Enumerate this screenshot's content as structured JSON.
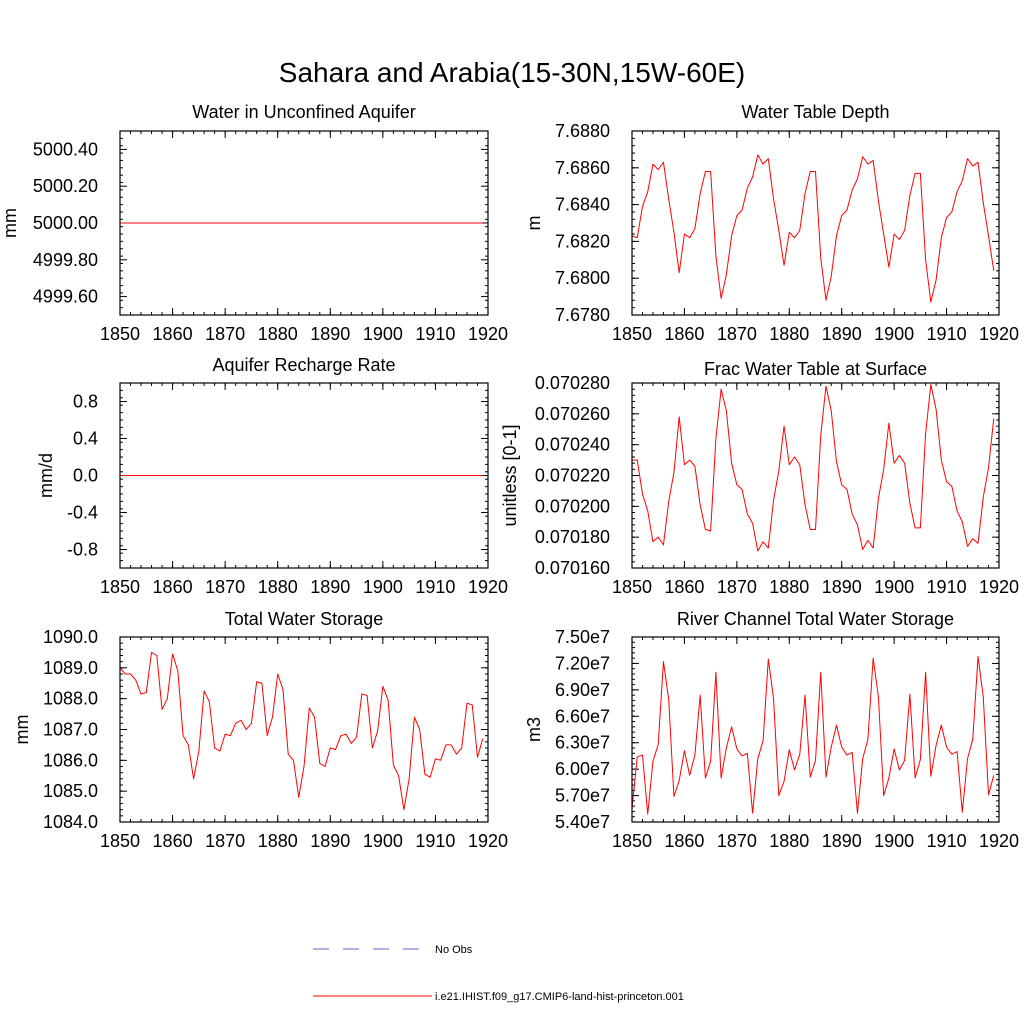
{
  "figure": {
    "title": "Sahara and Arabia(15-30N,15W-60E)"
  },
  "chart_data": [
    {
      "type": "line",
      "title": "Water in Unconfined Aquifer",
      "ylabel": "mm",
      "xlim": [
        1850,
        1920
      ],
      "ylim": [
        4999.5,
        5000.5
      ],
      "xticks": [
        1850,
        1860,
        1870,
        1880,
        1890,
        1900,
        1910,
        1920
      ],
      "xtick_labels": [
        "1850",
        "1860",
        "1870",
        "1880",
        "1890",
        "1900",
        "1910",
        "1920"
      ],
      "yticks": [
        4999.6,
        4999.8,
        5000.0,
        5000.2,
        5000.4
      ],
      "ytick_labels": [
        "4999.60",
        "4999.80",
        "5000.00",
        "5000.20",
        "5000.40"
      ],
      "x_start": 1850,
      "series": [
        {
          "name": "i.e21.IHIST.f09_g17.CMIP6-land-hist-princeton.001",
          "color": "#ff0000",
          "values": [
            5000,
            5000,
            5000,
            5000,
            5000,
            5000,
            5000,
            5000,
            5000,
            5000,
            5000,
            5000,
            5000,
            5000,
            5000,
            5000,
            5000,
            5000,
            5000,
            5000,
            5000,
            5000,
            5000,
            5000,
            5000,
            5000,
            5000,
            5000,
            5000,
            5000,
            5000,
            5000,
            5000,
            5000,
            5000,
            5000,
            5000,
            5000,
            5000,
            5000,
            5000,
            5000,
            5000,
            5000,
            5000,
            5000,
            5000,
            5000,
            5000,
            5000,
            5000,
            5000,
            5000,
            5000,
            5000,
            5000,
            5000,
            5000,
            5000,
            5000,
            5000,
            5000,
            5000,
            5000,
            5000,
            5000,
            5000,
            5000,
            5000,
            5000
          ]
        }
      ]
    },
    {
      "type": "line",
      "title": "Water Table Depth",
      "ylabel": "m",
      "xlim": [
        1850,
        1920
      ],
      "ylim": [
        7.678,
        7.688
      ],
      "xticks": [
        1850,
        1860,
        1870,
        1880,
        1890,
        1900,
        1910,
        1920
      ],
      "xtick_labels": [
        "1850",
        "1860",
        "1870",
        "1880",
        "1890",
        "1900",
        "1910",
        "1920"
      ],
      "yticks": [
        7.678,
        7.68,
        7.682,
        7.684,
        7.686,
        7.688
      ],
      "ytick_labels": [
        "7.6780",
        "7.6800",
        "7.6820",
        "7.6840",
        "7.6860",
        "7.6880"
      ],
      "x_start": 1850,
      "series": [
        {
          "name": "i.e21.IHIST.f09_g17.CMIP6-land-hist-princeton.001",
          "color": "#ff0000",
          "values": [
            7.6823,
            7.6822,
            7.6839,
            7.6847,
            7.6862,
            7.6859,
            7.6863,
            7.6843,
            7.6825,
            7.6803,
            7.6824,
            7.6822,
            7.6827,
            7.6846,
            7.6858,
            7.6858,
            7.6812,
            7.6789,
            7.6802,
            7.6823,
            7.6834,
            7.6837,
            7.6849,
            7.6855,
            7.6867,
            7.6862,
            7.6865,
            7.6843,
            7.6826,
            7.6807,
            7.6825,
            7.6822,
            7.6826,
            7.6846,
            7.6858,
            7.6858,
            7.6811,
            7.6788,
            7.6801,
            7.6823,
            7.6834,
            7.6837,
            7.6848,
            7.6854,
            7.6866,
            7.6862,
            7.6864,
            7.6842,
            7.6824,
            7.6806,
            7.6824,
            7.6821,
            7.6826,
            7.6845,
            7.6857,
            7.6857,
            7.681,
            7.6787,
            7.6799,
            7.6822,
            7.6833,
            7.6836,
            7.6847,
            7.6853,
            7.6865,
            7.6861,
            7.6863,
            7.6841,
            7.6823,
            7.6804
          ]
        }
      ]
    },
    {
      "type": "line",
      "title": "Aquifer Recharge Rate",
      "ylabel": "mm/d",
      "xlim": [
        1850,
        1920
      ],
      "ylim": [
        -1.0,
        1.0
      ],
      "xticks": [
        1850,
        1860,
        1870,
        1880,
        1890,
        1900,
        1910,
        1920
      ],
      "xtick_labels": [
        "1850",
        "1860",
        "1870",
        "1880",
        "1890",
        "1900",
        "1910",
        "1920"
      ],
      "yticks": [
        -0.8,
        -0.4,
        0.0,
        0.4,
        0.8
      ],
      "ytick_labels": [
        "-0.8",
        "-0.4",
        "0.0",
        "0.4",
        "0.8"
      ],
      "x_start": 1850,
      "series": [
        {
          "name": "i.e21.IHIST.f09_g17.CMIP6-land-hist-princeton.001",
          "color": "#ff0000",
          "values": [
            0,
            0,
            0,
            0,
            0,
            0,
            0,
            0,
            0,
            0,
            0,
            0,
            0,
            0,
            0,
            0,
            0,
            0,
            0,
            0,
            0,
            0,
            0,
            0,
            0,
            0,
            0,
            0,
            0,
            0,
            0,
            0,
            0,
            0,
            0,
            0,
            0,
            0,
            0,
            0,
            0,
            0,
            0,
            0,
            0,
            0,
            0,
            0,
            0,
            0,
            0,
            0,
            0,
            0,
            0,
            0,
            0,
            0,
            0,
            0,
            0,
            0,
            0,
            0,
            0,
            0,
            0,
            0,
            0,
            0
          ]
        }
      ]
    },
    {
      "type": "line",
      "title": "Frac Water Table at Surface",
      "ylabel": "unitless [0-1]",
      "xlim": [
        1850,
        1920
      ],
      "ylim": [
        0.07016,
        0.07028
      ],
      "xticks": [
        1850,
        1860,
        1870,
        1880,
        1890,
        1900,
        1910,
        1920
      ],
      "xtick_labels": [
        "1850",
        "1860",
        "1870",
        "1880",
        "1890",
        "1900",
        "1910",
        "1920"
      ],
      "yticks": [
        0.07016,
        0.07018,
        0.0702,
        0.07022,
        0.07024,
        0.07026,
        0.07028
      ],
      "ytick_labels": [
        "0.070160",
        "0.070180",
        "0.070200",
        "0.070220",
        "0.070240",
        "0.070260",
        "0.070280"
      ],
      "x_start": 1850,
      "series": [
        {
          "name": "i.e21.IHIST.f09_g17.CMIP6-land-hist-princeton.001",
          "color": "#ff0000",
          "values": [
            0.07023,
            0.07023,
            0.070208,
            0.070197,
            0.070177,
            0.07018,
            0.070175,
            0.070203,
            0.070222,
            0.070258,
            0.070227,
            0.07023,
            0.070226,
            0.070201,
            0.070185,
            0.070184,
            0.070244,
            0.070276,
            0.070262,
            0.070228,
            0.070214,
            0.070211,
            0.070195,
            0.070189,
            0.070171,
            0.070177,
            0.070173,
            0.070204,
            0.070223,
            0.070252,
            0.070227,
            0.070232,
            0.070227,
            0.070201,
            0.070185,
            0.070185,
            0.070246,
            0.070278,
            0.070262,
            0.070229,
            0.070214,
            0.070211,
            0.070195,
            0.070188,
            0.070172,
            0.070178,
            0.070173,
            0.070205,
            0.070224,
            0.070254,
            0.070228,
            0.070233,
            0.070228,
            0.070202,
            0.070186,
            0.070186,
            0.070247,
            0.070279,
            0.070263,
            0.07023,
            0.070216,
            0.070213,
            0.070197,
            0.07019,
            0.070174,
            0.070179,
            0.070176,
            0.070206,
            0.070225,
            0.070257
          ]
        }
      ]
    },
    {
      "type": "line",
      "title": "Total Water Storage",
      "ylabel": "mm",
      "xlim": [
        1850,
        1920
      ],
      "ylim": [
        1084.0,
        1090.0
      ],
      "xticks": [
        1850,
        1860,
        1870,
        1880,
        1890,
        1900,
        1910,
        1920
      ],
      "xtick_labels": [
        "1850",
        "1860",
        "1870",
        "1880",
        "1890",
        "1900",
        "1910",
        "1920"
      ],
      "yticks": [
        1084.0,
        1085.0,
        1086.0,
        1087.0,
        1088.0,
        1089.0,
        1090.0
      ],
      "ytick_labels": [
        "1084.0",
        "1085.0",
        "1086.0",
        "1087.0",
        "1088.0",
        "1089.0",
        "1090.0"
      ],
      "x_start": 1850,
      "series": [
        {
          "name": "i.e21.IHIST.f09_g17.CMIP6-land-hist-princeton.001",
          "color": "#ff0000",
          "values": [
            1089.0,
            1088.8,
            1088.8,
            1088.6,
            1088.15,
            1088.2,
            1089.5,
            1089.4,
            1087.65,
            1088.0,
            1089.45,
            1088.9,
            1086.8,
            1086.5,
            1085.4,
            1086.3,
            1088.25,
            1087.9,
            1086.4,
            1086.3,
            1086.85,
            1086.8,
            1087.2,
            1087.3,
            1087.0,
            1087.2,
            1088.55,
            1088.5,
            1086.8,
            1087.4,
            1088.8,
            1088.3,
            1086.2,
            1086.0,
            1084.8,
            1085.8,
            1087.7,
            1087.4,
            1085.9,
            1085.8,
            1086.4,
            1086.35,
            1086.8,
            1086.85,
            1086.55,
            1086.75,
            1088.15,
            1088.1,
            1086.4,
            1086.95,
            1088.4,
            1087.95,
            1085.85,
            1085.5,
            1084.4,
            1085.4,
            1087.4,
            1087.0,
            1085.55,
            1085.45,
            1086.05,
            1086.0,
            1086.5,
            1086.5,
            1086.2,
            1086.4,
            1087.85,
            1087.8,
            1086.1,
            1086.7
          ]
        }
      ]
    },
    {
      "type": "line",
      "title": "River Channel Total Water Storage",
      "ylabel": "m3",
      "xlim": [
        1850,
        1920
      ],
      "ylim": [
        54000000,
        75000000
      ],
      "xticks": [
        1850,
        1860,
        1870,
        1880,
        1890,
        1900,
        1910,
        1920
      ],
      "xtick_labels": [
        "1850",
        "1860",
        "1870",
        "1880",
        "1890",
        "1900",
        "1910",
        "1920"
      ],
      "yticks": [
        54000000,
        57000000,
        60000000,
        63000000,
        66000000,
        69000000,
        72000000,
        75000000
      ],
      "ytick_labels": [
        "5.40e7",
        "5.70e7",
        "6.00e7",
        "6.30e7",
        "6.60e7",
        "6.90e7",
        "7.20e7",
        "7.50e7"
      ],
      "x_start": 1850,
      "series": [
        {
          "name": "i.e21.IHIST.f09_g17.CMIP6-land-hist-princeton.001",
          "color": "#ff0000",
          "values": [
            55500000,
            61400000,
            61600000,
            54900000,
            60900000,
            62800000,
            72200000,
            67900000,
            56900000,
            58700000,
            62100000,
            59300000,
            61600000,
            68400000,
            59000000,
            60900000,
            71000000,
            59000000,
            62400000,
            64800000,
            62300000,
            61500000,
            61800000,
            55000000,
            61200000,
            63200000,
            72500000,
            68000000,
            57000000,
            58600000,
            62200000,
            59900000,
            61700000,
            68400000,
            59100000,
            61000000,
            71000000,
            59100000,
            62500000,
            65000000,
            62500000,
            61600000,
            61900000,
            55000000,
            61200000,
            63400000,
            72600000,
            68200000,
            57000000,
            59000000,
            62300000,
            59900000,
            61000000,
            68500000,
            59000000,
            61100000,
            71000000,
            59200000,
            62700000,
            65000000,
            62500000,
            61700000,
            62000000,
            55100000,
            61200000,
            63400000,
            72800000,
            68200000,
            57100000,
            59300000
          ]
        }
      ]
    }
  ],
  "legend": {
    "items": [
      {
        "label": "No Obs",
        "color": "#6666cc",
        "style": "dashed"
      },
      {
        "label": "i.e21.IHIST.f09_g17.CMIP6-land-hist-princeton.001",
        "color": "#ff0000",
        "style": "solid"
      }
    ]
  }
}
